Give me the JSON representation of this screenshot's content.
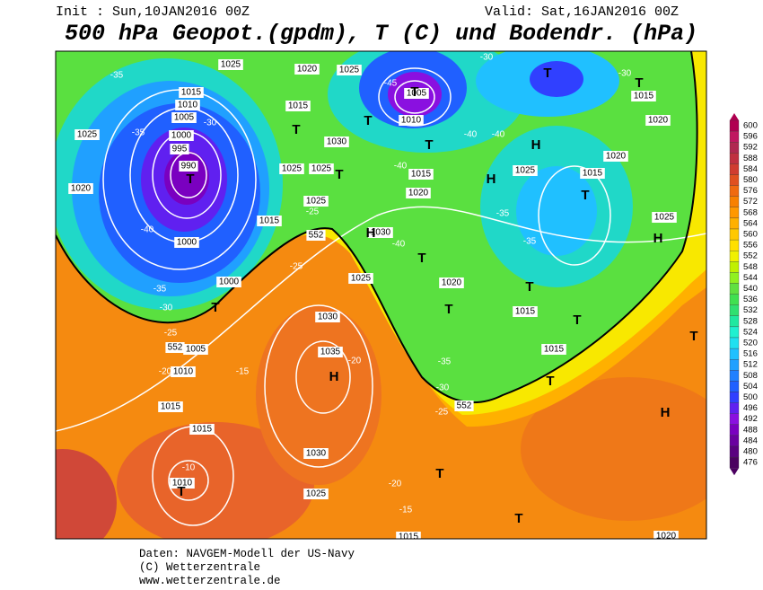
{
  "header": {
    "init": "Init : Sun,10JAN2016 00Z",
    "valid": "Valid: Sat,16JAN2016 00Z",
    "title": "500 hPa Geopot.(gpdm), T (C) und Bodendr. (hPa)"
  },
  "map": {
    "isobar_labels": [
      "1025",
      "1020",
      "1025",
      "1015",
      "1010",
      "1005",
      "1000",
      "995",
      "990",
      "1025",
      "1020",
      "1000",
      "1015",
      "1030",
      "1025",
      "1025",
      "1015",
      "1025",
      "1030",
      "1025",
      "1000",
      "1005",
      "1010",
      "1015",
      "1015",
      "1010",
      "1030",
      "1035",
      "1030",
      "1025",
      "1005",
      "1010",
      "1015",
      "1020",
      "1025",
      "1020",
      "1015",
      "1015",
      "1015",
      "1020",
      "1025",
      "1015",
      "1020",
      "1015",
      "1020"
    ],
    "contour_labels": [
      "552",
      "552",
      "552"
    ],
    "temperature_labels": [
      "-35",
      "-35",
      "-40",
      "-35",
      "-30",
      "-25",
      "-20",
      "-15",
      "-10",
      "-25",
      "-25",
      "-20",
      "-35",
      "-30",
      "-25",
      "-20",
      "-15",
      "-40",
      "-40",
      "-40",
      "-45",
      "-35",
      "-35",
      "-30",
      "-30",
      "-40",
      "-30"
    ],
    "pressure_centers": [
      "T",
      "T",
      "T",
      "T",
      "T",
      "T",
      "T",
      "T",
      "H",
      "H",
      "T",
      "T",
      "T",
      "T",
      "T",
      "T",
      "H",
      "T",
      "H",
      "T",
      "T",
      "H",
      "H",
      "T",
      "T"
    ]
  },
  "colorbar": {
    "ticks": [
      600,
      596,
      592,
      588,
      584,
      580,
      576,
      572,
      568,
      564,
      560,
      556,
      552,
      548,
      544,
      540,
      536,
      532,
      528,
      524,
      520,
      516,
      512,
      508,
      504,
      500,
      496,
      492,
      488,
      484,
      480,
      476
    ],
    "colors": [
      "#b00050",
      "#c01860",
      "#b02850",
      "#c03040",
      "#d03c30",
      "#e05020",
      "#f06a10",
      "#f88000",
      "#ff9800",
      "#ffb000",
      "#ffc800",
      "#ffe000",
      "#f0f000",
      "#c0f000",
      "#90f020",
      "#60e040",
      "#40e050",
      "#30e070",
      "#20e8a0",
      "#20f0d0",
      "#20e0f0",
      "#20c0ff",
      "#20a0ff",
      "#2080ff",
      "#2060ff",
      "#3040ff",
      "#6020f0",
      "#8a10e0",
      "#7a00c0",
      "#6a00a0",
      "#5a0080",
      "#4b0060"
    ]
  },
  "footer": {
    "lines": [
      "Daten: NAVGEM-Modell der US-Navy",
      "(C) Wetterzentrale",
      "www.wetterzentrale.de"
    ]
  }
}
